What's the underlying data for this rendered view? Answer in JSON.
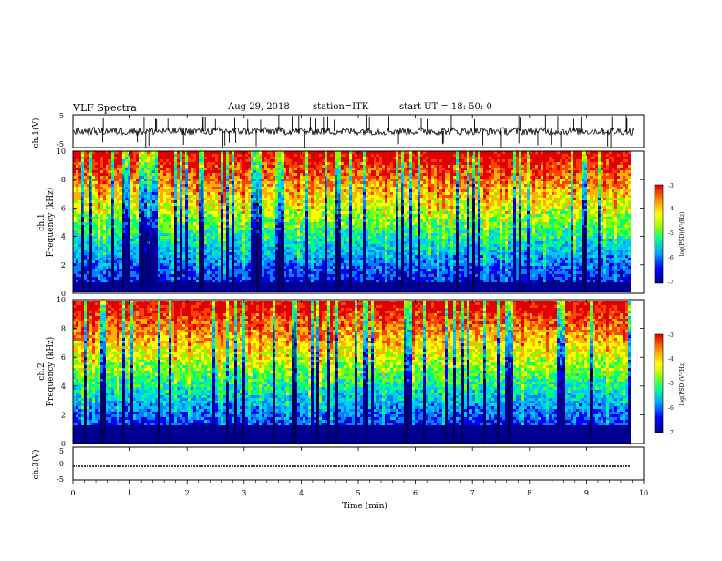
{
  "header": {
    "title": "VLF Spectra",
    "date": "Aug 29, 2018",
    "station": "station=ITK",
    "start_ut": "start UT =   18: 50: 0"
  },
  "colors": {
    "colormap": [
      "#000090",
      "#0000ff",
      "#0080ff",
      "#00c8ff",
      "#00ff80",
      "#80ff00",
      "#ffff00",
      "#ffb000",
      "#ff4000",
      "#e00000"
    ],
    "trace": "#000000"
  },
  "chart_data": [
    {
      "type": "line",
      "name": "ch.1 waveform",
      "ylabel": "ch.1(V)",
      "ylim": [
        -5,
        5
      ],
      "yticks": [
        "5",
        "-5"
      ],
      "xlim": [
        0,
        10
      ],
      "baseline": 0,
      "noise_amplitude": 1.2,
      "spike_count": 60
    },
    {
      "type": "heatmap",
      "name": "ch.1 spectrogram",
      "ylabel_line1": "ch.1",
      "ylabel_line2": "Frequency  (kHz)",
      "ylim": [
        0,
        10
      ],
      "yticks": [
        "0",
        "2",
        "4",
        "6",
        "8",
        "10"
      ],
      "xlim": [
        0,
        9.85
      ],
      "colorbar": {
        "label": "log(PSD)(V²/Hz)",
        "range": [
          -7,
          -3
        ],
        "ticks": [
          "-3",
          "-4",
          "-5",
          "-6",
          "-7"
        ]
      },
      "description_levels": [
        -6.8,
        -6.0,
        -5.0,
        -4.2,
        -3.5
      ]
    },
    {
      "type": "heatmap",
      "name": "ch.2 spectrogram",
      "ylabel_line1": "ch.2",
      "ylabel_line2": "Frequency  (kHz)",
      "ylim": [
        0,
        10
      ],
      "yticks": [
        "0",
        "2",
        "4",
        "6",
        "8",
        "10"
      ],
      "xlim": [
        0,
        9.85
      ],
      "colorbar": {
        "label": "log(PSD)(V²/Hz)",
        "range": [
          -7,
          -3
        ],
        "ticks": [
          "-3",
          "-4",
          "-5",
          "-6",
          "-7"
        ]
      }
    },
    {
      "type": "line",
      "name": "ch.3 waveform",
      "ylabel": "ch.3(V)",
      "ylim": [
        -5,
        5
      ],
      "yticks": [
        "5",
        "0",
        "-5"
      ],
      "xlim": [
        0,
        10
      ],
      "baseline": -1.0
    }
  ],
  "x_axis": {
    "label": "Time  (min)",
    "ticks": [
      "0",
      "1",
      "2",
      "3",
      "4",
      "5",
      "6",
      "7",
      "8",
      "9",
      "10"
    ],
    "range": [
      0,
      10
    ]
  }
}
